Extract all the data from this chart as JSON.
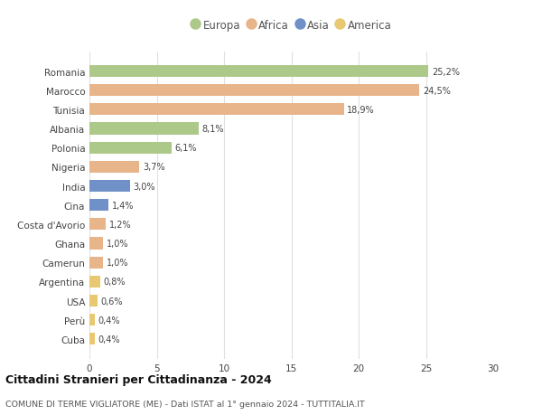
{
  "countries": [
    "Romania",
    "Marocco",
    "Tunisia",
    "Albania",
    "Polonia",
    "Nigeria",
    "India",
    "Cina",
    "Costa d'Avorio",
    "Ghana",
    "Camerun",
    "Argentina",
    "USA",
    "Perù",
    "Cuba"
  ],
  "values": [
    25.2,
    24.5,
    18.9,
    8.1,
    6.1,
    3.7,
    3.0,
    1.4,
    1.2,
    1.0,
    1.0,
    0.8,
    0.6,
    0.4,
    0.4
  ],
  "labels": [
    "25,2%",
    "24,5%",
    "18,9%",
    "8,1%",
    "6,1%",
    "3,7%",
    "3,0%",
    "1,4%",
    "1,2%",
    "1,0%",
    "1,0%",
    "0,8%",
    "0,6%",
    "0,4%",
    "0,4%"
  ],
  "continents": [
    "Europa",
    "Africa",
    "Africa",
    "Europa",
    "Europa",
    "Africa",
    "Asia",
    "Asia",
    "Africa",
    "Africa",
    "Africa",
    "America",
    "America",
    "America",
    "America"
  ],
  "colors": {
    "Europa": "#adc98a",
    "Africa": "#e8b48a",
    "Asia": "#7090c8",
    "America": "#e8c870"
  },
  "xlim": [
    0,
    30
  ],
  "xticks": [
    0,
    5,
    10,
    15,
    20,
    25,
    30
  ],
  "title": "Cittadini Stranieri per Cittadinanza - 2024",
  "subtitle": "COMUNE DI TERME VIGLIATORE (ME) - Dati ISTAT al 1° gennaio 2024 - TUTTITALIA.IT",
  "background_color": "#ffffff",
  "grid_color": "#e0e0e0"
}
